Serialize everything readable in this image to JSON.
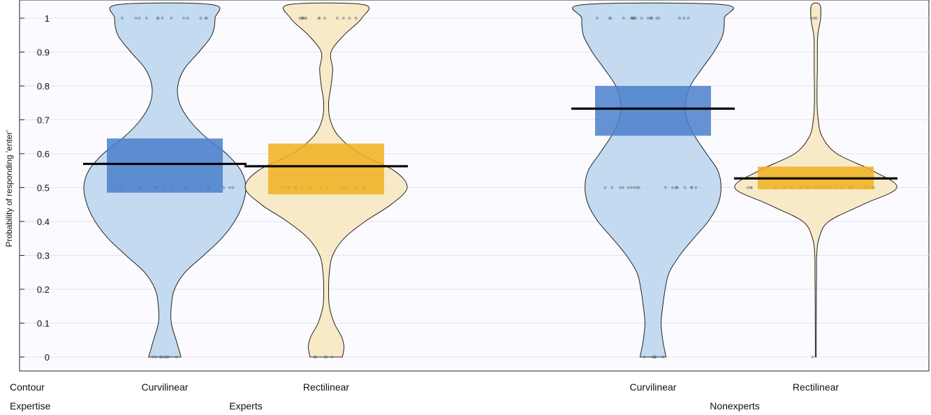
{
  "chart_data": {
    "type": "violin",
    "ylabel": "Probability of responding 'enter'",
    "ylim": [
      0,
      1
    ],
    "y_ticks": [
      0,
      0.1,
      0.2,
      0.3,
      0.4,
      0.5,
      0.6,
      0.7,
      0.8,
      0.9,
      1
    ],
    "y_tick_labels": [
      "0",
      "0.1",
      "0.2",
      "0.3",
      "0.4",
      "0.5",
      "0.6",
      "0.7",
      "0.8",
      "0.9",
      "1"
    ],
    "grid": true,
    "row_labels": {
      "contour": "Contour",
      "expertise": "Expertise"
    },
    "groups": [
      {
        "expertise": "Experts",
        "conditions": [
          {
            "contour": "Curvilinear",
            "color": "#4a7fcb",
            "violin_color": "#b9d3ee",
            "mean": 0.57,
            "ci": [
              0.485,
              0.645
            ],
            "density": [
              [
                0,
                0.2
              ],
              [
                0.05,
                0.14
              ],
              [
                0.1,
                0.08
              ],
              [
                0.15,
                0.08
              ],
              [
                0.2,
                0.12
              ],
              [
                0.25,
                0.25
              ],
              [
                0.3,
                0.48
              ],
              [
                0.35,
                0.7
              ],
              [
                0.4,
                0.86
              ],
              [
                0.45,
                0.96
              ],
              [
                0.5,
                1.0
              ],
              [
                0.55,
                0.94
              ],
              [
                0.6,
                0.76
              ],
              [
                0.65,
                0.5
              ],
              [
                0.7,
                0.3
              ],
              [
                0.75,
                0.18
              ],
              [
                0.8,
                0.16
              ],
              [
                0.85,
                0.24
              ],
              [
                0.9,
                0.42
              ],
              [
                0.95,
                0.58
              ],
              [
                1,
                0.62
              ],
              [
                1.04,
                0.58
              ]
            ],
            "points": [
              0,
              0,
              0,
              0,
              0,
              0,
              0,
              0,
              0,
              0.5,
              0.5,
              0.5,
              0.5,
              0.5,
              0.5,
              0.5,
              0.5,
              0.5,
              0.5,
              0.5,
              0.5,
              0.5,
              0.5,
              0.5,
              0.5,
              0.5,
              1,
              1,
              1,
              1,
              1,
              1,
              1,
              1,
              1,
              1,
              1,
              1,
              1
            ]
          },
          {
            "contour": "Rectilinear",
            "color": "#f0b020",
            "violin_color": "#f8e6bd",
            "mean": 0.563,
            "ci": [
              0.48,
              0.63
            ],
            "density": [
              [
                0,
                0.2
              ],
              [
                0.03,
                0.22
              ],
              [
                0.06,
                0.19
              ],
              [
                0.1,
                0.1
              ],
              [
                0.15,
                0.04
              ],
              [
                0.2,
                0.03
              ],
              [
                0.25,
                0.04
              ],
              [
                0.3,
                0.08
              ],
              [
                0.35,
                0.22
              ],
              [
                0.4,
                0.48
              ],
              [
                0.45,
                0.8
              ],
              [
                0.5,
                1.0
              ],
              [
                0.55,
                0.84
              ],
              [
                0.6,
                0.42
              ],
              [
                0.65,
                0.16
              ],
              [
                0.7,
                0.05
              ],
              [
                0.75,
                0.03
              ],
              [
                0.8,
                0.06
              ],
              [
                0.85,
                0.08
              ],
              [
                0.9,
                0.06
              ],
              [
                0.95,
                0.22
              ],
              [
                1,
                0.44
              ],
              [
                1.04,
                0.46
              ]
            ],
            "points": [
              0,
              0,
              0,
              0,
              0,
              0.5,
              0.5,
              0.5,
              0.5,
              0.5,
              0.5,
              0.5,
              0.5,
              0.5,
              0.5,
              0.5,
              0.5,
              0.5,
              0.5,
              0.5,
              0.5,
              0.5,
              0.5,
              0.5,
              0.5,
              1,
              1,
              1,
              1,
              1,
              1,
              1,
              1,
              1,
              1,
              1,
              1,
              1
            ]
          }
        ]
      },
      {
        "expertise": "Nonexperts",
        "conditions": [
          {
            "contour": "Curvilinear",
            "color": "#4a7fcb",
            "violin_color": "#b9d3ee",
            "mean": 0.733,
            "ci": [
              0.653,
              0.8
            ],
            "density": [
              [
                0,
                0.16
              ],
              [
                0.05,
                0.12
              ],
              [
                0.1,
                0.1
              ],
              [
                0.15,
                0.12
              ],
              [
                0.2,
                0.15
              ],
              [
                0.25,
                0.2
              ],
              [
                0.3,
                0.33
              ],
              [
                0.35,
                0.5
              ],
              [
                0.4,
                0.68
              ],
              [
                0.45,
                0.8
              ],
              [
                0.5,
                0.84
              ],
              [
                0.55,
                0.8
              ],
              [
                0.6,
                0.66
              ],
              [
                0.65,
                0.52
              ],
              [
                0.7,
                0.42
              ],
              [
                0.75,
                0.4
              ],
              [
                0.8,
                0.46
              ],
              [
                0.85,
                0.6
              ],
              [
                0.9,
                0.75
              ],
              [
                0.95,
                0.86
              ],
              [
                1,
                0.88
              ],
              [
                1.04,
                0.86
              ]
            ],
            "points": [
              0,
              0,
              0,
              0,
              0,
              0,
              0.5,
              0.5,
              0.5,
              0.5,
              0.5,
              0.5,
              0.5,
              0.5,
              0.5,
              0.5,
              0.5,
              0.5,
              0.5,
              0.5,
              0.5,
              0.5,
              0.5,
              0.5,
              1,
              1,
              1,
              1,
              1,
              1,
              1,
              1,
              1,
              1,
              1,
              1,
              1,
              1,
              1,
              1,
              1,
              1,
              1,
              1
            ]
          },
          {
            "contour": "Rectilinear",
            "color": "#f0b020",
            "violin_color": "#f8e6bd",
            "mean": 0.527,
            "ci": [
              0.495,
              0.562
            ],
            "density": [
              [
                0,
                0.005
              ],
              [
                0.05,
                0.005
              ],
              [
                0.1,
                0.006
              ],
              [
                0.15,
                0.007
              ],
              [
                0.2,
                0.008
              ],
              [
                0.25,
                0.01
              ],
              [
                0.3,
                0.012
              ],
              [
                0.35,
                0.04
              ],
              [
                0.4,
                0.16
              ],
              [
                0.45,
                0.58
              ],
              [
                0.5,
                1.0
              ],
              [
                0.55,
                0.7
              ],
              [
                0.6,
                0.26
              ],
              [
                0.65,
                0.08
              ],
              [
                0.7,
                0.03
              ],
              [
                0.75,
                0.016
              ],
              [
                0.8,
                0.016
              ],
              [
                0.85,
                0.02
              ],
              [
                0.9,
                0.02
              ],
              [
                0.95,
                0.025
              ],
              [
                1,
                0.06
              ],
              [
                1.04,
                0.05
              ]
            ],
            "points": [
              0,
              0.5,
              0.5,
              0.5,
              0.5,
              0.5,
              0.5,
              0.5,
              0.5,
              0.5,
              0.5,
              0.5,
              0.5,
              0.5,
              0.5,
              0.5,
              0.5,
              0.5,
              0.5,
              0.5,
              0.5,
              0.5,
              0.5,
              0.5,
              0.5,
              0.5,
              1,
              1,
              1
            ]
          }
        ]
      }
    ]
  }
}
